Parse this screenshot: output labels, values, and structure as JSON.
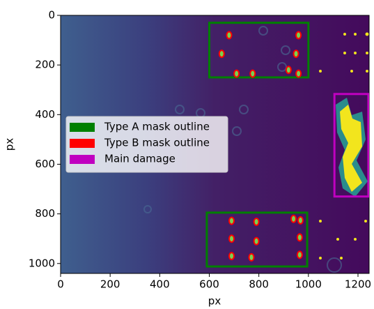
{
  "chart_data": {
    "type": "image",
    "xlabel": "px",
    "ylabel": "px",
    "xlim": [
      0,
      1245
    ],
    "ylim": [
      1040,
      0
    ],
    "xticks": [
      0,
      200,
      400,
      600,
      800,
      1000,
      1200
    ],
    "yticks": [
      0,
      200,
      400,
      600,
      800,
      1000
    ],
    "legend": "center left",
    "series": [
      {
        "name": "Type A mask outline",
        "color": "#008000",
        "boxes": [
          [
            600,
            30,
            1000,
            250
          ],
          [
            590,
            795,
            995,
            1012
          ]
        ]
      },
      {
        "name": "Type B mask outline",
        "color": "#ff0000",
        "x": [
          680,
          650,
          710,
          775,
          920,
          960,
          960,
          950,
          690,
          790,
          940,
          968,
          690,
          790,
          965,
          690,
          770,
          965
        ],
        "y": [
          80,
          155,
          235,
          235,
          220,
          235,
          80,
          155,
          828,
          832,
          820,
          826,
          900,
          910,
          895,
          970,
          975,
          965
        ]
      },
      {
        "name": "Main damage",
        "color": "#c000c0",
        "boxes": [
          [
            1105,
            317,
            1242,
            730
          ]
        ]
      }
    ]
  }
}
